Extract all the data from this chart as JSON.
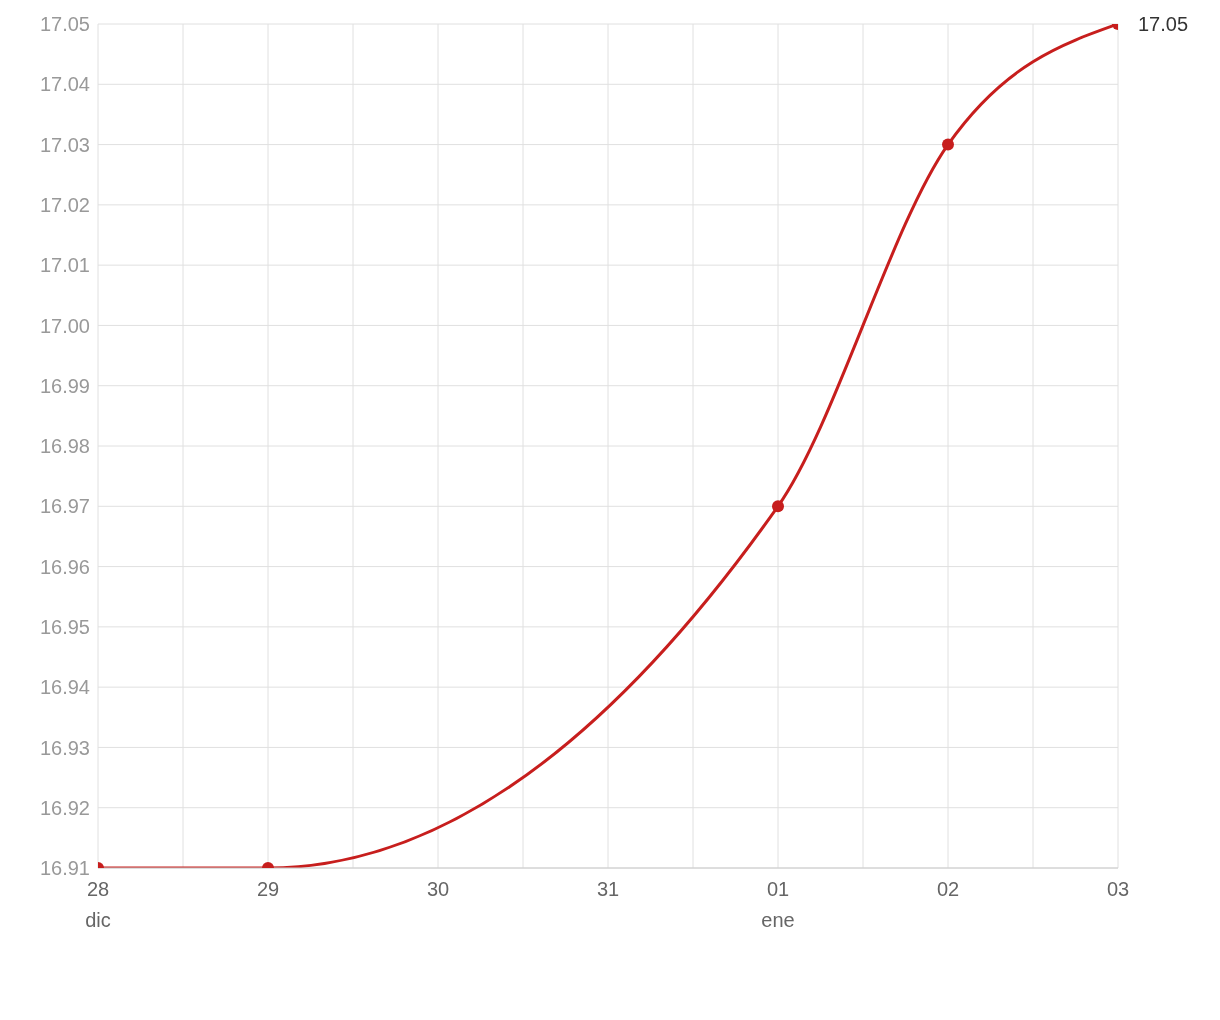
{
  "chart_data": {
    "type": "line",
    "categories": [
      "28\ndic",
      "29",
      "30",
      "31",
      "01\nene",
      "02",
      "03"
    ],
    "series": [
      {
        "color": "#c71e1d",
        "values": [
          16.91,
          16.91,
          null,
          null,
          16.97,
          17.03,
          17.05
        ],
        "value_labels": [
          null,
          null,
          null,
          null,
          null,
          null,
          "17.05"
        ]
      }
    ],
    "ylim": [
      16.91,
      17.05
    ],
    "yticks": [
      16.91,
      16.92,
      16.93,
      16.94,
      16.95,
      16.96,
      16.97,
      16.98,
      16.99,
      {
        "value": 17,
        "label": "17.00"
      },
      17.01,
      17.02,
      17.03,
      17.04,
      17.05
    ],
    "grid": true,
    "marker": "circle",
    "line_style": "solid"
  }
}
